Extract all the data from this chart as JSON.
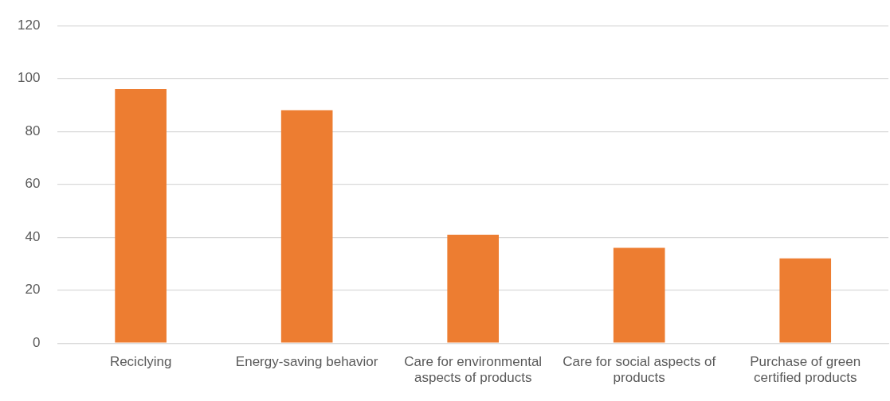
{
  "chart_data": {
    "type": "bar",
    "categories": [
      "Reciclying",
      "Energy-saving behavior",
      "Care for environmental aspects of products",
      "Care for social aspects of products",
      "Purchase of green certified products"
    ],
    "values": [
      96,
      88,
      41,
      36,
      32
    ],
    "color": "#ed7d31",
    "ylim": [
      0,
      120
    ],
    "yticks": [
      0,
      20,
      40,
      60,
      80,
      100,
      120
    ],
    "grid": "y"
  }
}
